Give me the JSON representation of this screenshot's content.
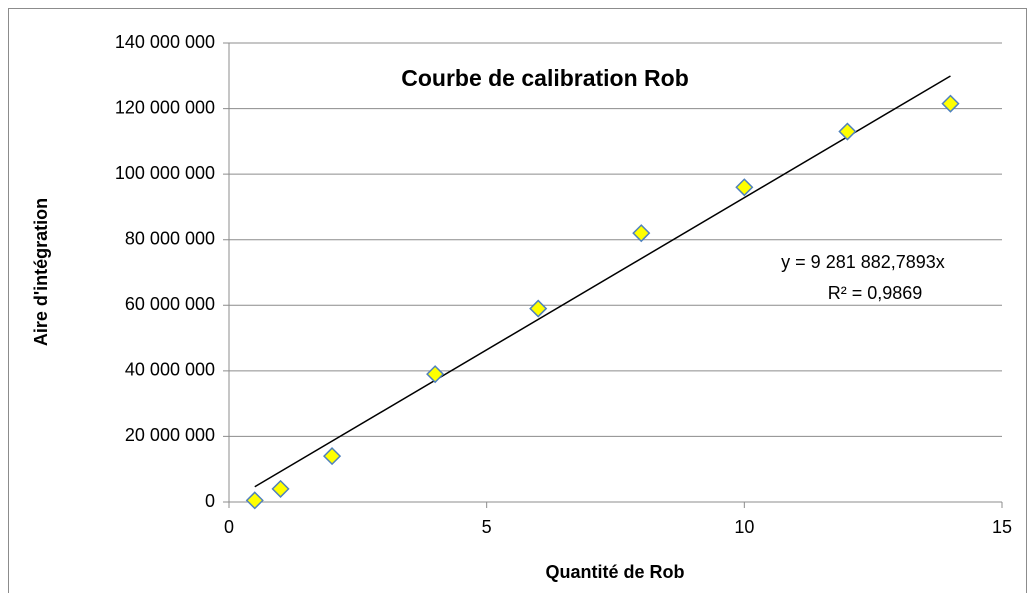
{
  "chart_data": {
    "type": "scatter",
    "title": "Courbe de calibration Rob",
    "x_label": "Quantité de Rob",
    "y_label": "Aire d'intégration",
    "series": [
      {
        "name": "Rob",
        "color": "#ffff00",
        "edge_color": "#4f81bd",
        "x": [
          0.5,
          1,
          2,
          4,
          6,
          8,
          10,
          12,
          14
        ],
        "values": [
          500000,
          4000000,
          14000000,
          39000000,
          59000000,
          82000000,
          96000000,
          113000000,
          121500000
        ]
      }
    ],
    "trendline": {
      "slope": 9281882.7893,
      "label": "y = 9 281 882,7893x",
      "r2_label": "R² = 0,9869",
      "color": "#000000"
    },
    "xlim": [
      0,
      15
    ],
    "xticks": [
      0,
      5,
      10,
      15
    ],
    "ylim": [
      0,
      140000000
    ],
    "yticks": [
      {
        "value": 0,
        "label": "0"
      },
      {
        "value": 20000000,
        "label": "20 000 000"
      },
      {
        "value": 40000000,
        "label": "40 000 000"
      },
      {
        "value": 60000000,
        "label": "60 000 000"
      },
      {
        "value": 80000000,
        "label": "80 000 000"
      },
      {
        "value": 100000000,
        "label": "100 000 000"
      },
      {
        "value": 120000000,
        "label": "120 000 000"
      },
      {
        "value": 140000000,
        "label": "140 000 000"
      }
    ],
    "grid": true
  }
}
